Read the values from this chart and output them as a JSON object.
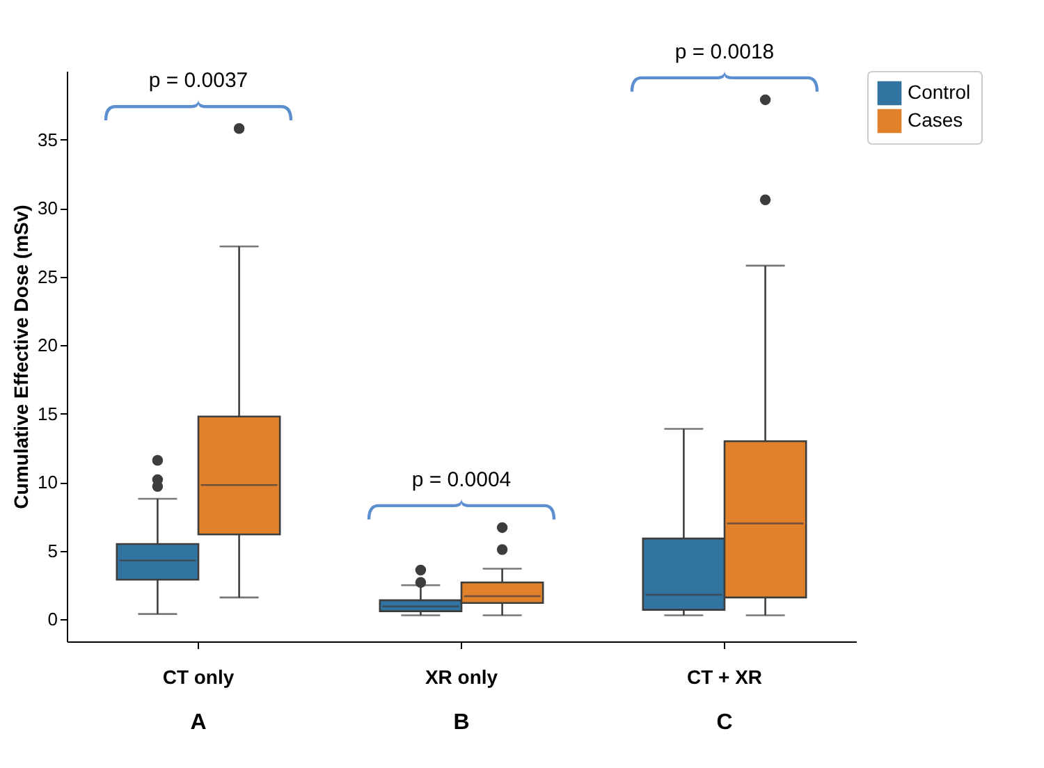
{
  "chart_data": {
    "type": "box",
    "ylabel": "Cumulative Effective Dose (mSv)",
    "categories": [
      "CT only",
      "XR only",
      "CT + XR"
    ],
    "ylim": [
      -1.6,
      40
    ],
    "yticks": [
      0,
      5,
      10,
      15,
      20,
      25,
      30,
      35
    ],
    "legend": "top right",
    "series": [
      {
        "name": "Control",
        "color": "#3274a1",
        "boxes": [
          {
            "low": 0.4,
            "q1": 2.9,
            "median": 4.3,
            "q3": 5.5,
            "high": 8.8,
            "outliers": [
              9.7,
              10.2,
              11.6
            ]
          },
          {
            "low": 0.3,
            "q1": 0.6,
            "median": 0.95,
            "q3": 1.4,
            "high": 2.5,
            "outliers": [
              2.7,
              3.6
            ]
          },
          {
            "low": 0.3,
            "q1": 0.7,
            "median": 1.8,
            "q3": 5.9,
            "high": 13.9
          }
        ]
      },
      {
        "name": "Cases",
        "color": "#e1812c",
        "boxes": [
          {
            "low": 1.6,
            "q1": 6.2,
            "median": 9.8,
            "q3": 14.8,
            "high": 27.2,
            "outliers": [
              35.8
            ]
          },
          {
            "low": 0.3,
            "q1": 1.2,
            "median": 1.7,
            "q3": 2.7,
            "high": 3.7,
            "outliers": [
              5.1,
              6.7
            ]
          },
          {
            "low": 0.3,
            "q1": 1.6,
            "median": 7.0,
            "q3": 13.0,
            "high": 25.8,
            "outliers": [
              30.6,
              37.9
            ]
          }
        ]
      }
    ],
    "annotations": [
      "p = 0.0037",
      "p = 0.0004",
      "p = 0.0018",
      "A",
      "B",
      "C"
    ]
  }
}
